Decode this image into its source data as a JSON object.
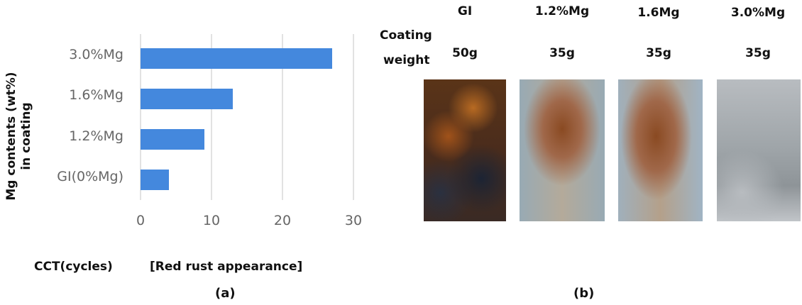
{
  "chart_data": {
    "type": "bar",
    "orientation": "horizontal",
    "categories": [
      "3.0%Mg",
      "1.6%Mg",
      "1.2%Mg",
      "GI(0%Mg)"
    ],
    "values": [
      27,
      13,
      9,
      4
    ],
    "ylabel": "Mg contents (wt%)\nin coating",
    "ylabel_lines": [
      "Mg contents (wt%)",
      "in coating"
    ],
    "xlabel": "CCT(cycles)",
    "xlim": [
      0,
      30
    ],
    "xticks": [
      0,
      10,
      20,
      30
    ],
    "grid": true,
    "bar_color": "#4488dd",
    "panel_label": "(a)"
  },
  "photos": {
    "title": "[Red rust appearance]",
    "row_label_1": "Coating",
    "row_label_2": "weight",
    "samples": [
      {
        "name": "GI",
        "weight": "50g"
      },
      {
        "name": "1.2%Mg",
        "weight": "35g"
      },
      {
        "name": "1.6Mg",
        "weight": "35g"
      },
      {
        "name": "3.0%Mg",
        "weight": "35g"
      }
    ],
    "panel_label": "(b)"
  }
}
